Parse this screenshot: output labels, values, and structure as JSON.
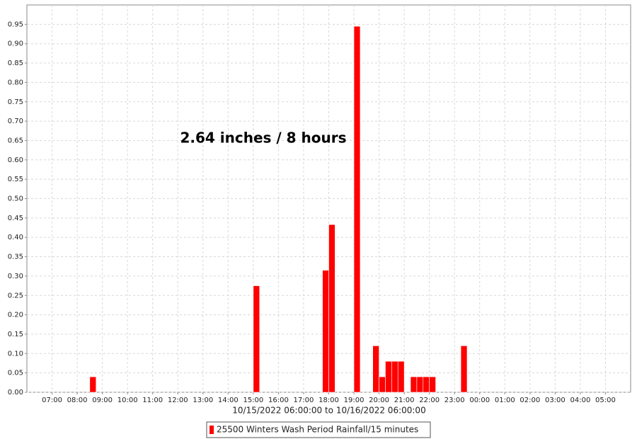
{
  "chart_data": {
    "type": "bar",
    "annotation": "2.64 inches / 8 hours",
    "x_label": "10/15/2022 06:00:00 to 10/16/2022 06:00:00",
    "series": [
      {
        "name": "25500 Winters Wash Period Rainfall/15 minutes",
        "color": "#ff0000",
        "x": [
          "2022-10-15T08:30",
          "2022-10-15T15:00",
          "2022-10-15T17:45",
          "2022-10-15T18:00",
          "2022-10-15T19:00",
          "2022-10-15T19:45",
          "2022-10-15T20:00",
          "2022-10-15T20:15",
          "2022-10-15T20:30",
          "2022-10-15T20:45",
          "2022-10-15T21:15",
          "2022-10-15T21:30",
          "2022-10-15T21:45",
          "2022-10-15T22:00",
          "2022-10-15T23:15"
        ],
        "values": [
          0.04,
          0.275,
          0.315,
          0.433,
          0.945,
          0.12,
          0.04,
          0.08,
          0.08,
          0.08,
          0.04,
          0.04,
          0.04,
          0.04,
          0.12
        ]
      }
    ],
    "bar_minutes": 15,
    "xlim": [
      "2022-10-15T06:00",
      "2022-10-16T06:00"
    ],
    "xticks": [
      {
        "value": "2022-10-15T07:00",
        "label": "07:00"
      },
      {
        "value": "2022-10-15T08:00",
        "label": "08:00"
      },
      {
        "value": "2022-10-15T09:00",
        "label": "09:00"
      },
      {
        "value": "2022-10-15T10:00",
        "label": "10:00"
      },
      {
        "value": "2022-10-15T11:00",
        "label": "11:00"
      },
      {
        "value": "2022-10-15T12:00",
        "label": "12:00"
      },
      {
        "value": "2022-10-15T13:00",
        "label": "13:00"
      },
      {
        "value": "2022-10-15T14:00",
        "label": "14:00"
      },
      {
        "value": "2022-10-15T15:00",
        "label": "15:00"
      },
      {
        "value": "2022-10-15T16:00",
        "label": "16:00"
      },
      {
        "value": "2022-10-15T17:00",
        "label": "17:00"
      },
      {
        "value": "2022-10-15T18:00",
        "label": "18:00"
      },
      {
        "value": "2022-10-15T19:00",
        "label": "19:00"
      },
      {
        "value": "2022-10-15T20:00",
        "label": "20:00"
      },
      {
        "value": "2022-10-15T21:00",
        "label": "21:00"
      },
      {
        "value": "2022-10-15T22:00",
        "label": "22:00"
      },
      {
        "value": "2022-10-15T23:00",
        "label": "23:00"
      },
      {
        "value": "2022-10-16T00:00",
        "label": "00:00"
      },
      {
        "value": "2022-10-16T01:00",
        "label": "01:00"
      },
      {
        "value": "2022-10-16T02:00",
        "label": "02:00"
      },
      {
        "value": "2022-10-16T03:00",
        "label": "03:00"
      },
      {
        "value": "2022-10-16T04:00",
        "label": "04:00"
      },
      {
        "value": "2022-10-16T05:00",
        "label": "05:00"
      }
    ],
    "ylim": [
      0,
      1.0
    ],
    "yticks": [
      {
        "value": 0,
        "label": "0.00"
      },
      {
        "value": 0.05,
        "label": "0.05"
      },
      {
        "value": 0.1,
        "label": "0.10"
      },
      {
        "value": 0.15,
        "label": "0.15"
      },
      {
        "value": 0.2,
        "label": "0.20"
      },
      {
        "value": 0.25,
        "label": "0.25"
      },
      {
        "value": 0.3,
        "label": "0.30"
      },
      {
        "value": 0.35,
        "label": "0.35"
      },
      {
        "value": 0.4,
        "label": "0.40"
      },
      {
        "value": 0.45,
        "label": "0.45"
      },
      {
        "value": 0.5,
        "label": "0.50"
      },
      {
        "value": 0.55,
        "label": "0.55"
      },
      {
        "value": 0.6,
        "label": "0.60"
      },
      {
        "value": 0.65,
        "label": "0.65"
      },
      {
        "value": 0.7,
        "label": "0.70"
      },
      {
        "value": 0.75,
        "label": "0.75"
      },
      {
        "value": 0.8,
        "label": "0.80"
      },
      {
        "value": 0.85,
        "label": "0.85"
      },
      {
        "value": 0.9,
        "label": "0.90"
      },
      {
        "value": 0.95,
        "label": "0.95"
      }
    ],
    "grid": true
  }
}
